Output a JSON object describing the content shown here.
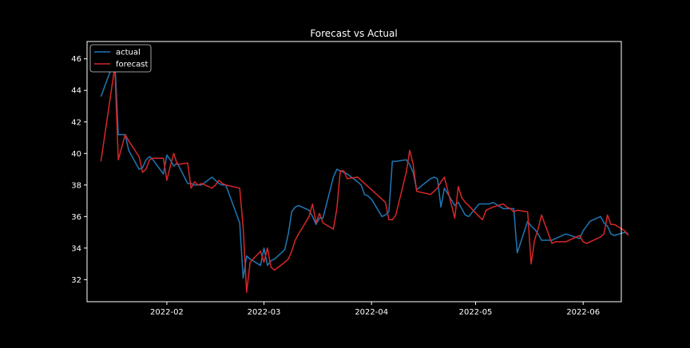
{
  "chart_data": {
    "type": "line",
    "title": "Forecast vs Actual",
    "xlabel": "",
    "ylabel": "",
    "xlim": [
      "2022-01-09",
      "2022-06-12"
    ],
    "ylim": [
      30.6,
      47.1
    ],
    "x_ticks": [
      "2022-02-01",
      "2022-03-01",
      "2022-04-01",
      "2022-05-01",
      "2022-06-01"
    ],
    "x_tick_labels": [
      "2022-02",
      "2022-03",
      "2022-04",
      "2022-05",
      "2022-06"
    ],
    "y_ticks": [
      32,
      34,
      36,
      38,
      40,
      42,
      44,
      46
    ],
    "y_tick_labels": [
      "32",
      "34",
      "36",
      "38",
      "40",
      "42",
      "44",
      "46"
    ],
    "grid": false,
    "legend": "upper-left",
    "background": "#000000",
    "series": [
      {
        "name": "actual",
        "color": "#1f77b4",
        "points": [
          [
            "2022-01-13",
            43.6
          ],
          [
            "2022-01-17",
            46.0
          ],
          [
            "2022-01-18",
            41.2
          ],
          [
            "2022-01-20",
            41.2
          ],
          [
            "2022-01-21",
            40.2
          ],
          [
            "2022-01-24",
            39.0
          ],
          [
            "2022-01-25",
            39.1
          ],
          [
            "2022-01-26",
            39.6
          ],
          [
            "2022-01-27",
            39.8
          ],
          [
            "2022-01-28",
            39.6
          ],
          [
            "2022-01-31",
            38.7
          ],
          [
            "2022-02-01",
            39.9
          ],
          [
            "2022-02-02",
            39.6
          ],
          [
            "2022-02-03",
            39.2
          ],
          [
            "2022-02-04",
            39.4
          ],
          [
            "2022-02-07",
            38.1
          ],
          [
            "2022-02-08",
            38.1
          ],
          [
            "2022-02-09",
            38.0
          ],
          [
            "2022-02-10",
            38.0
          ],
          [
            "2022-02-11",
            38.0
          ],
          [
            "2022-02-14",
            38.5
          ],
          [
            "2022-02-15",
            38.3
          ],
          [
            "2022-02-16",
            38.1
          ],
          [
            "2022-02-17",
            38.0
          ],
          [
            "2022-02-18",
            38.0
          ],
          [
            "2022-02-22",
            35.6
          ],
          [
            "2022-02-23",
            32.1
          ],
          [
            "2022-02-24",
            33.5
          ],
          [
            "2022-02-25",
            33.3
          ],
          [
            "2022-02-28",
            32.9
          ],
          [
            "2022-03-01",
            34.0
          ],
          [
            "2022-03-02",
            32.9
          ],
          [
            "2022-03-03",
            33.2
          ],
          [
            "2022-03-04",
            33.3
          ],
          [
            "2022-03-07",
            33.9
          ],
          [
            "2022-03-08",
            34.9
          ],
          [
            "2022-03-09",
            36.3
          ],
          [
            "2022-03-10",
            36.6
          ],
          [
            "2022-03-11",
            36.7
          ],
          [
            "2022-03-14",
            36.4
          ],
          [
            "2022-03-15",
            36.0
          ],
          [
            "2022-03-16",
            35.5
          ],
          [
            "2022-03-17",
            35.9
          ],
          [
            "2022-03-18",
            35.9
          ],
          [
            "2022-03-21",
            38.5
          ],
          [
            "2022-03-22",
            39.0
          ],
          [
            "2022-03-23",
            38.9
          ],
          [
            "2022-03-24",
            38.8
          ],
          [
            "2022-03-25",
            38.7
          ],
          [
            "2022-03-28",
            38.2
          ],
          [
            "2022-03-29",
            38.0
          ],
          [
            "2022-03-30",
            37.4
          ],
          [
            "2022-03-31",
            37.3
          ],
          [
            "2022-04-01",
            37.1
          ],
          [
            "2022-04-04",
            36.0
          ],
          [
            "2022-04-05",
            36.1
          ],
          [
            "2022-04-06",
            36.3
          ],
          [
            "2022-04-07",
            39.5
          ],
          [
            "2022-04-08",
            39.5
          ],
          [
            "2022-04-11",
            39.6
          ],
          [
            "2022-04-12",
            39.3
          ],
          [
            "2022-04-13",
            38.8
          ],
          [
            "2022-04-14",
            37.7
          ],
          [
            "2022-04-18",
            38.4
          ],
          [
            "2022-04-19",
            38.5
          ],
          [
            "2022-04-20",
            38.4
          ],
          [
            "2022-04-21",
            36.6
          ],
          [
            "2022-04-22",
            37.8
          ],
          [
            "2022-04-25",
            36.7
          ],
          [
            "2022-04-26",
            36.9
          ],
          [
            "2022-04-27",
            36.5
          ],
          [
            "2022-04-28",
            36.1
          ],
          [
            "2022-04-29",
            36.0
          ],
          [
            "2022-05-02",
            36.8
          ],
          [
            "2022-05-03",
            36.8
          ],
          [
            "2022-05-04",
            36.8
          ],
          [
            "2022-05-05",
            36.8
          ],
          [
            "2022-05-06",
            36.9
          ],
          [
            "2022-05-09",
            36.5
          ],
          [
            "2022-05-10",
            36.5
          ],
          [
            "2022-05-11",
            36.5
          ],
          [
            "2022-05-12",
            36.5
          ],
          [
            "2022-05-13",
            33.7
          ],
          [
            "2022-05-16",
            35.7
          ],
          [
            "2022-05-17",
            35.4
          ],
          [
            "2022-05-18",
            35.2
          ],
          [
            "2022-05-19",
            34.9
          ],
          [
            "2022-05-20",
            34.5
          ],
          [
            "2022-05-23",
            34.5
          ],
          [
            "2022-05-24",
            34.6
          ],
          [
            "2022-05-25",
            34.7
          ],
          [
            "2022-05-26",
            34.8
          ],
          [
            "2022-05-27",
            34.9
          ],
          [
            "2022-05-31",
            34.6
          ],
          [
            "2022-06-01",
            35.1
          ],
          [
            "2022-06-02",
            35.4
          ],
          [
            "2022-06-03",
            35.7
          ],
          [
            "2022-06-06",
            36.0
          ],
          [
            "2022-06-07",
            35.6
          ],
          [
            "2022-06-08",
            35.4
          ],
          [
            "2022-06-09",
            34.9
          ],
          [
            "2022-06-10",
            34.8
          ],
          [
            "2022-06-13",
            35.0
          ],
          [
            "2022-06-14",
            34.9
          ]
        ]
      },
      {
        "name": "forecast",
        "color": "#d62728",
        "points": [
          [
            "2022-01-13",
            39.5
          ],
          [
            "2022-01-17",
            45.5
          ],
          [
            "2022-01-18",
            39.6
          ],
          [
            "2022-01-20",
            41.2
          ],
          [
            "2022-01-21",
            40.8
          ],
          [
            "2022-01-24",
            39.8
          ],
          [
            "2022-01-25",
            38.8
          ],
          [
            "2022-01-26",
            39.0
          ],
          [
            "2022-01-27",
            39.6
          ],
          [
            "2022-01-28",
            39.7
          ],
          [
            "2022-01-31",
            39.7
          ],
          [
            "2022-02-01",
            38.3
          ],
          [
            "2022-02-02",
            39.2
          ],
          [
            "2022-02-03",
            40.0
          ],
          [
            "2022-02-04",
            39.3
          ],
          [
            "2022-02-07",
            39.4
          ],
          [
            "2022-02-08",
            37.8
          ],
          [
            "2022-02-09",
            38.2
          ],
          [
            "2022-02-10",
            38.0
          ],
          [
            "2022-02-11",
            38.1
          ],
          [
            "2022-02-14",
            37.8
          ],
          [
            "2022-02-15",
            38.0
          ],
          [
            "2022-02-16",
            38.3
          ],
          [
            "2022-02-17",
            38.1
          ],
          [
            "2022-02-18",
            38.0
          ],
          [
            "2022-02-22",
            37.8
          ],
          [
            "2022-02-23",
            35.3
          ],
          [
            "2022-02-24",
            31.2
          ],
          [
            "2022-02-25",
            33.1
          ],
          [
            "2022-02-28",
            33.8
          ],
          [
            "2022-03-01",
            33.1
          ],
          [
            "2022-03-02",
            34.0
          ],
          [
            "2022-03-03",
            32.8
          ],
          [
            "2022-03-04",
            32.6
          ],
          [
            "2022-03-07",
            33.1
          ],
          [
            "2022-03-08",
            33.3
          ],
          [
            "2022-03-09",
            33.8
          ],
          [
            "2022-03-10",
            34.5
          ],
          [
            "2022-03-11",
            34.9
          ],
          [
            "2022-03-14",
            36.0
          ],
          [
            "2022-03-15",
            36.8
          ],
          [
            "2022-03-16",
            35.6
          ],
          [
            "2022-03-17",
            36.2
          ],
          [
            "2022-03-18",
            35.6
          ],
          [
            "2022-03-21",
            35.2
          ],
          [
            "2022-03-22",
            36.5
          ],
          [
            "2022-03-23",
            38.9
          ],
          [
            "2022-03-24",
            38.9
          ],
          [
            "2022-03-25",
            38.4
          ],
          [
            "2022-03-28",
            38.5
          ],
          [
            "2022-03-29",
            38.3
          ],
          [
            "2022-03-30",
            38.1
          ],
          [
            "2022-03-31",
            37.9
          ],
          [
            "2022-04-01",
            37.7
          ],
          [
            "2022-04-04",
            37.1
          ],
          [
            "2022-04-05",
            36.9
          ],
          [
            "2022-04-06",
            35.8
          ],
          [
            "2022-04-07",
            35.8
          ],
          [
            "2022-04-08",
            36.1
          ],
          [
            "2022-04-11",
            38.8
          ],
          [
            "2022-04-12",
            40.2
          ],
          [
            "2022-04-13",
            39.3
          ],
          [
            "2022-04-14",
            37.6
          ],
          [
            "2022-04-18",
            37.4
          ],
          [
            "2022-04-19",
            37.6
          ],
          [
            "2022-04-20",
            37.8
          ],
          [
            "2022-04-21",
            38.2
          ],
          [
            "2022-04-22",
            38.5
          ],
          [
            "2022-04-25",
            35.9
          ],
          [
            "2022-04-26",
            37.9
          ],
          [
            "2022-04-27",
            37.2
          ],
          [
            "2022-04-28",
            36.9
          ],
          [
            "2022-04-29",
            36.7
          ],
          [
            "2022-05-02",
            36.0
          ],
          [
            "2022-05-03",
            35.8
          ],
          [
            "2022-05-04",
            36.4
          ],
          [
            "2022-05-05",
            36.5
          ],
          [
            "2022-05-06",
            36.6
          ],
          [
            "2022-05-09",
            36.8
          ],
          [
            "2022-05-10",
            36.6
          ],
          [
            "2022-05-11",
            36.5
          ],
          [
            "2022-05-12",
            36.3
          ],
          [
            "2022-05-13",
            36.4
          ],
          [
            "2022-05-16",
            36.3
          ],
          [
            "2022-05-17",
            33.0
          ],
          [
            "2022-05-18",
            34.5
          ],
          [
            "2022-05-19",
            35.2
          ],
          [
            "2022-05-20",
            36.1
          ],
          [
            "2022-05-23",
            34.3
          ],
          [
            "2022-05-24",
            34.4
          ],
          [
            "2022-05-25",
            34.4
          ],
          [
            "2022-05-26",
            34.4
          ],
          [
            "2022-05-27",
            34.4
          ],
          [
            "2022-05-31",
            34.8
          ],
          [
            "2022-06-01",
            34.4
          ],
          [
            "2022-06-02",
            34.3
          ],
          [
            "2022-06-03",
            34.4
          ],
          [
            "2022-06-06",
            34.7
          ],
          [
            "2022-06-07",
            34.9
          ],
          [
            "2022-06-08",
            36.1
          ],
          [
            "2022-06-09",
            35.5
          ],
          [
            "2022-06-10",
            35.5
          ],
          [
            "2022-06-13",
            35.1
          ],
          [
            "2022-06-14",
            34.8
          ]
        ]
      }
    ]
  }
}
